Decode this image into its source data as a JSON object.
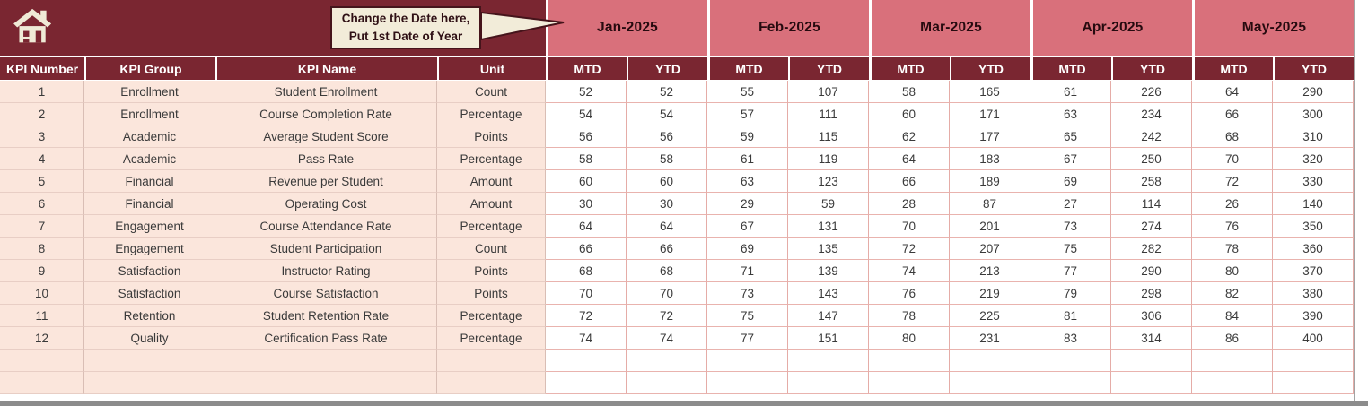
{
  "banner": {
    "home_icon": "home-icon",
    "callout": {
      "line1": "Change the Date here,",
      "line2": "Put 1st Date of Year"
    },
    "months": [
      "Jan-2025",
      "Feb-2025",
      "Mar-2025",
      "Apr-2025",
      "May-2025"
    ],
    "sub_headers": [
      "MTD",
      "YTD"
    ]
  },
  "table": {
    "columns": [
      "KPI Number",
      "KPI Group",
      "KPI Name",
      "Unit"
    ],
    "rows": [
      {
        "number": "1",
        "group": "Enrollment",
        "name": "Student Enrollment",
        "unit": "Count",
        "values": [
          "52",
          "52",
          "55",
          "107",
          "58",
          "165",
          "61",
          "226",
          "64",
          "290"
        ]
      },
      {
        "number": "2",
        "group": "Enrollment",
        "name": "Course Completion Rate",
        "unit": "Percentage",
        "values": [
          "54",
          "54",
          "57",
          "111",
          "60",
          "171",
          "63",
          "234",
          "66",
          "300"
        ]
      },
      {
        "number": "3",
        "group": "Academic",
        "name": "Average Student Score",
        "unit": "Points",
        "values": [
          "56",
          "56",
          "59",
          "115",
          "62",
          "177",
          "65",
          "242",
          "68",
          "310"
        ]
      },
      {
        "number": "4",
        "group": "Academic",
        "name": "Pass Rate",
        "unit": "Percentage",
        "values": [
          "58",
          "58",
          "61",
          "119",
          "64",
          "183",
          "67",
          "250",
          "70",
          "320"
        ]
      },
      {
        "number": "5",
        "group": "Financial",
        "name": "Revenue per Student",
        "unit": "Amount",
        "values": [
          "60",
          "60",
          "63",
          "123",
          "66",
          "189",
          "69",
          "258",
          "72",
          "330"
        ]
      },
      {
        "number": "6",
        "group": "Financial",
        "name": "Operating Cost",
        "unit": "Amount",
        "values": [
          "30",
          "30",
          "29",
          "59",
          "28",
          "87",
          "27",
          "114",
          "26",
          "140"
        ]
      },
      {
        "number": "7",
        "group": "Engagement",
        "name": "Course Attendance Rate",
        "unit": "Percentage",
        "values": [
          "64",
          "64",
          "67",
          "131",
          "70",
          "201",
          "73",
          "274",
          "76",
          "350"
        ]
      },
      {
        "number": "8",
        "group": "Engagement",
        "name": "Student Participation",
        "unit": "Count",
        "values": [
          "66",
          "66",
          "69",
          "135",
          "72",
          "207",
          "75",
          "282",
          "78",
          "360"
        ]
      },
      {
        "number": "9",
        "group": "Satisfaction",
        "name": "Instructor Rating",
        "unit": "Points",
        "values": [
          "68",
          "68",
          "71",
          "139",
          "74",
          "213",
          "77",
          "290",
          "80",
          "370"
        ]
      },
      {
        "number": "10",
        "group": "Satisfaction",
        "name": "Course Satisfaction",
        "unit": "Points",
        "values": [
          "70",
          "70",
          "73",
          "143",
          "76",
          "219",
          "79",
          "298",
          "82",
          "380"
        ]
      },
      {
        "number": "11",
        "group": "Retention",
        "name": "Student Retention Rate",
        "unit": "Percentage",
        "values": [
          "72",
          "72",
          "75",
          "147",
          "78",
          "225",
          "81",
          "306",
          "84",
          "390"
        ]
      },
      {
        "number": "12",
        "group": "Quality",
        "name": "Certification Pass Rate",
        "unit": "Percentage",
        "values": [
          "74",
          "74",
          "77",
          "151",
          "80",
          "231",
          "83",
          "314",
          "86",
          "400"
        ]
      }
    ],
    "empty_rows": 2
  },
  "colors": {
    "maroon": "#7A2631",
    "month_pink": "#D9707B",
    "label_peach": "#FBE6DC",
    "callout_cream": "#F2ECD9",
    "grid_border": "#E5ACA7",
    "data_text": "#3A3A3A"
  }
}
